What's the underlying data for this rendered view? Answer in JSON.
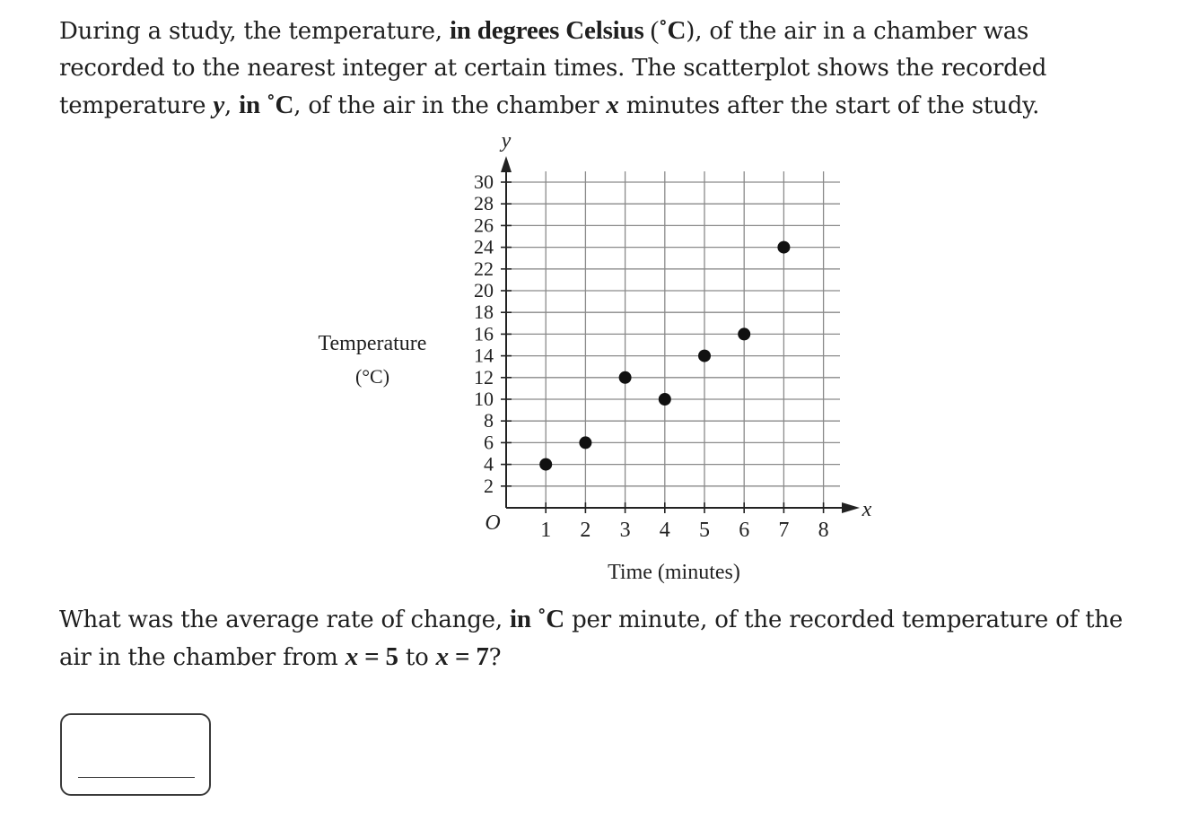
{
  "question": {
    "intro_line1_a": "During a study, the temperature, ",
    "intro_line1_b": "in degrees Celsius",
    "intro_line1_c": " (",
    "intro_line1_deg": "˚C",
    "intro_line1_d": "), of the air in a chamber was",
    "intro_line2": "recorded to the nearest integer at certain times. The scatterplot shows the recorded",
    "intro_line3_a": "temperature ",
    "intro_line3_y": "y",
    "intro_line3_b": ", ",
    "intro_line3_in": "in ",
    "intro_line3_deg": "˚C",
    "intro_line3_c": ", of the air in the chamber ",
    "intro_line3_x": "x",
    "intro_line3_d": " minutes after the start of the study.",
    "ask_line1_a": "What was the average rate of change, ",
    "ask_line1_in": "in ",
    "ask_line1_deg": "˚C",
    "ask_line1_b": " per minute, of the recorded temperature of the",
    "ask_line2_a": "air in the chamber from ",
    "ask_line2_x1": "x",
    "ask_line2_eq1": " = 5",
    "ask_line2_to": " to ",
    "ask_line2_x2": "x",
    "ask_line2_eq2": " = 7",
    "ask_line2_end": "?"
  },
  "answer": {
    "value": "",
    "placeholder": ""
  },
  "chart_data": {
    "type": "scatter",
    "xlabel": "Time (minutes)",
    "ylabel_line1": "Temperature",
    "ylabel_line2": "(°C)",
    "x_axis_letter": "x",
    "y_axis_letter": "y",
    "origin_label": "O",
    "xlim": [
      0,
      8
    ],
    "ylim": [
      0,
      30
    ],
    "x_ticks": [
      1,
      2,
      3,
      4,
      5,
      6,
      7,
      8
    ],
    "y_ticks": [
      2,
      4,
      6,
      8,
      10,
      12,
      14,
      16,
      18,
      20,
      22,
      24,
      26,
      28,
      30
    ],
    "grid": true,
    "points": [
      {
        "x": 1,
        "y": 4
      },
      {
        "x": 2,
        "y": 6
      },
      {
        "x": 3,
        "y": 12
      },
      {
        "x": 4,
        "y": 10
      },
      {
        "x": 5,
        "y": 14
      },
      {
        "x": 6,
        "y": 16
      },
      {
        "x": 7,
        "y": 24
      }
    ],
    "point_color": "#111111",
    "grid_color": "#8a8a8a",
    "axis_color": "#222222"
  }
}
